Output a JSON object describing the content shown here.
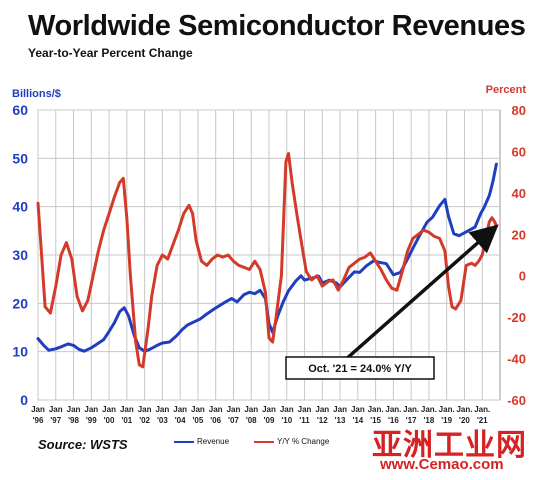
{
  "header": {
    "title": "Worldwide Semiconductor Revenues",
    "subtitle": "Year-to-Year Percent Change"
  },
  "footer": {
    "source": "Source: WSTS"
  },
  "legend": {
    "revenue": "Revenue",
    "yoy": "Y/Y % Change"
  },
  "watermark": {
    "site_name": "亚洲工业网",
    "url": "www.Cemao.com"
  },
  "colors": {
    "revenue": "#1f3fbf",
    "yoy": "#d43a2a",
    "grid": "#c8c8c8",
    "left_axis": "#1f3fbf",
    "right_axis": "#d43a2a"
  },
  "chart_data": {
    "type": "line",
    "title": "Worldwide Semiconductor Revenues",
    "subtitle": "Year-to-Year Percent Change",
    "y_left_label": "Billions/$",
    "y_right_label": "Percent",
    "y_left_range": [
      0,
      60
    ],
    "y_left_ticks": [
      "0",
      "10",
      "20",
      "30",
      "40",
      "50",
      "60"
    ],
    "y_right_range": [
      -60,
      80
    ],
    "y_right_ticks": [
      "-60",
      "-40",
      "-20",
      "0",
      "20",
      "40",
      "60",
      "80"
    ],
    "x_range": [
      1996.0,
      2022.0
    ],
    "grid": true,
    "x_ticks": [
      {
        "l1": "Jan",
        "l2": "'96"
      },
      {
        "l1": "Jan",
        "l2": "'97"
      },
      {
        "l1": "Jan",
        "l2": "'98"
      },
      {
        "l1": "Jan",
        "l2": "'99"
      },
      {
        "l1": "Jan",
        "l2": "'00"
      },
      {
        "l1": "Jan",
        "l2": "'01"
      },
      {
        "l1": "Jan",
        "l2": "'02"
      },
      {
        "l1": "Jan",
        "l2": "'03"
      },
      {
        "l1": "Jan",
        "l2": "'04"
      },
      {
        "l1": "Jan",
        "l2": "'05"
      },
      {
        "l1": "Jan",
        "l2": "'06"
      },
      {
        "l1": "Jan",
        "l2": "'07"
      },
      {
        "l1": "Jan",
        "l2": "'08"
      },
      {
        "l1": "Jan",
        "l2": "'09"
      },
      {
        "l1": "Jan",
        "l2": "'10"
      },
      {
        "l1": "Jan",
        "l2": "'11"
      },
      {
        "l1": "Jan",
        "l2": "'12"
      },
      {
        "l1": "Jan",
        "l2": "'13"
      },
      {
        "l1": "Jan",
        "l2": "'14"
      },
      {
        "l1": "Jan.",
        "l2": "'15"
      },
      {
        "l1": "Jan.",
        "l2": "'16"
      },
      {
        "l1": "Jan.",
        "l2": "'17"
      },
      {
        "l1": "Jan.",
        "l2": "'18"
      },
      {
        "l1": "Jan.",
        "l2": "'19"
      },
      {
        "l1": "Jan.",
        "l2": "'20"
      },
      {
        "l1": "Jan.",
        "l2": "'21"
      }
    ],
    "series": [
      {
        "name": "Revenue",
        "axis": "left",
        "points": [
          [
            1996.0,
            12.7
          ],
          [
            1996.3,
            11.4
          ],
          [
            1996.6,
            10.3
          ],
          [
            1997.0,
            10.6
          ],
          [
            1997.3,
            11.0
          ],
          [
            1997.7,
            11.6
          ],
          [
            1998.0,
            11.3
          ],
          [
            1998.3,
            10.5
          ],
          [
            1998.6,
            10.1
          ],
          [
            1999.0,
            10.8
          ],
          [
            1999.3,
            11.5
          ],
          [
            1999.7,
            12.5
          ],
          [
            2000.0,
            14.2
          ],
          [
            2000.3,
            16.0
          ],
          [
            2000.6,
            18.3
          ],
          [
            2000.85,
            19.1
          ],
          [
            2001.1,
            17.4
          ],
          [
            2001.4,
            13.5
          ],
          [
            2001.7,
            10.8
          ],
          [
            2002.0,
            10.1
          ],
          [
            2002.3,
            10.5
          ],
          [
            2002.7,
            11.3
          ],
          [
            2003.0,
            11.8
          ],
          [
            2003.4,
            12.0
          ],
          [
            2003.8,
            13.3
          ],
          [
            2004.1,
            14.5
          ],
          [
            2004.4,
            15.5
          ],
          [
            2004.8,
            16.2
          ],
          [
            2005.1,
            16.7
          ],
          [
            2005.5,
            17.8
          ],
          [
            2005.9,
            18.8
          ],
          [
            2006.2,
            19.5
          ],
          [
            2006.6,
            20.4
          ],
          [
            2006.9,
            21.0
          ],
          [
            2007.2,
            20.3
          ],
          [
            2007.6,
            21.8
          ],
          [
            2007.9,
            22.3
          ],
          [
            2008.2,
            22.0
          ],
          [
            2008.5,
            22.7
          ],
          [
            2008.8,
            21.0
          ],
          [
            2009.0,
            15.8
          ],
          [
            2009.2,
            14.0
          ],
          [
            2009.5,
            17.5
          ],
          [
            2009.8,
            20.3
          ],
          [
            2010.1,
            22.6
          ],
          [
            2010.5,
            24.6
          ],
          [
            2010.8,
            25.7
          ],
          [
            2011.0,
            24.8
          ],
          [
            2011.4,
            25.2
          ],
          [
            2011.8,
            25.6
          ],
          [
            2012.0,
            24.2
          ],
          [
            2012.4,
            24.8
          ],
          [
            2012.8,
            24.2
          ],
          [
            2013.0,
            23.4
          ],
          [
            2013.4,
            25.0
          ],
          [
            2013.8,
            26.5
          ],
          [
            2014.1,
            26.4
          ],
          [
            2014.5,
            27.8
          ],
          [
            2014.9,
            28.8
          ],
          [
            2015.2,
            28.5
          ],
          [
            2015.6,
            28.2
          ],
          [
            2016.0,
            25.9
          ],
          [
            2016.4,
            26.4
          ],
          [
            2016.8,
            29.2
          ],
          [
            2017.1,
            31.4
          ],
          [
            2017.5,
            34.2
          ],
          [
            2017.9,
            36.8
          ],
          [
            2018.2,
            37.8
          ],
          [
            2018.6,
            40.2
          ],
          [
            2018.9,
            41.5
          ],
          [
            2019.1,
            38.0
          ],
          [
            2019.4,
            34.4
          ],
          [
            2019.7,
            34.0
          ],
          [
            2020.0,
            34.6
          ],
          [
            2020.3,
            35.2
          ],
          [
            2020.6,
            35.8
          ],
          [
            2020.9,
            38.5
          ],
          [
            2021.1,
            39.8
          ],
          [
            2021.4,
            42.3
          ],
          [
            2021.6,
            45.2
          ],
          [
            2021.8,
            48.8
          ]
        ]
      },
      {
        "name": "Y/Y % Change",
        "axis": "right",
        "points": [
          [
            1996.0,
            35.0
          ],
          [
            1996.2,
            10.0
          ],
          [
            1996.4,
            -15.0
          ],
          [
            1996.7,
            -18.0
          ],
          [
            1997.0,
            -5.0
          ],
          [
            1997.3,
            10.0
          ],
          [
            1997.6,
            16.0
          ],
          [
            1997.9,
            8.0
          ],
          [
            1998.2,
            -10.0
          ],
          [
            1998.5,
            -17.0
          ],
          [
            1998.8,
            -12.0
          ],
          [
            1999.1,
            0.0
          ],
          [
            1999.4,
            12.0
          ],
          [
            1999.7,
            22.0
          ],
          [
            2000.0,
            30.0
          ],
          [
            2000.3,
            38.0
          ],
          [
            2000.6,
            45.0
          ],
          [
            2000.8,
            47.0
          ],
          [
            2001.0,
            28.0
          ],
          [
            2001.2,
            0.0
          ],
          [
            2001.5,
            -32.0
          ],
          [
            2001.7,
            -43.0
          ],
          [
            2001.9,
            -44.0
          ],
          [
            2002.2,
            -25.0
          ],
          [
            2002.4,
            -10.0
          ],
          [
            2002.7,
            5.0
          ],
          [
            2003.0,
            10.0
          ],
          [
            2003.3,
            8.0
          ],
          [
            2003.6,
            15.0
          ],
          [
            2003.9,
            22.0
          ],
          [
            2004.2,
            30.0
          ],
          [
            2004.5,
            34.0
          ],
          [
            2004.7,
            30.0
          ],
          [
            2004.9,
            17.0
          ],
          [
            2005.2,
            7.0
          ],
          [
            2005.5,
            5.0
          ],
          [
            2005.8,
            8.0
          ],
          [
            2006.1,
            10.0
          ],
          [
            2006.4,
            9.0
          ],
          [
            2006.7,
            10.0
          ],
          [
            2007.0,
            7.0
          ],
          [
            2007.3,
            5.0
          ],
          [
            2007.6,
            4.0
          ],
          [
            2007.9,
            3.0
          ],
          [
            2008.2,
            7.0
          ],
          [
            2008.5,
            3.0
          ],
          [
            2008.8,
            -8.0
          ],
          [
            2009.0,
            -30.0
          ],
          [
            2009.2,
            -32.0
          ],
          [
            2009.4,
            -20.0
          ],
          [
            2009.7,
            0.0
          ],
          [
            2009.95,
            55.0
          ],
          [
            2010.1,
            59.0
          ],
          [
            2010.3,
            45.0
          ],
          [
            2010.6,
            28.0
          ],
          [
            2010.9,
            12.0
          ],
          [
            2011.1,
            2.0
          ],
          [
            2011.4,
            -2.0
          ],
          [
            2011.7,
            0.0
          ],
          [
            2012.0,
            -5.0
          ],
          [
            2012.3,
            -3.0
          ],
          [
            2012.6,
            -2.0
          ],
          [
            2012.9,
            -7.0
          ],
          [
            2013.2,
            -2.0
          ],
          [
            2013.5,
            4.0
          ],
          [
            2013.8,
            6.0
          ],
          [
            2014.1,
            8.0
          ],
          [
            2014.4,
            9.0
          ],
          [
            2014.7,
            11.0
          ],
          [
            2015.0,
            7.0
          ],
          [
            2015.3,
            3.0
          ],
          [
            2015.6,
            -2.0
          ],
          [
            2015.9,
            -6.0
          ],
          [
            2016.2,
            -7.0
          ],
          [
            2016.5,
            2.0
          ],
          [
            2016.8,
            12.0
          ],
          [
            2017.1,
            18.0
          ],
          [
            2017.4,
            20.0
          ],
          [
            2017.7,
            22.0
          ],
          [
            2018.0,
            21.0
          ],
          [
            2018.3,
            19.0
          ],
          [
            2018.6,
            18.0
          ],
          [
            2018.9,
            12.0
          ],
          [
            2019.1,
            -5.0
          ],
          [
            2019.3,
            -15.0
          ],
          [
            2019.5,
            -16.0
          ],
          [
            2019.8,
            -12.0
          ],
          [
            2020.1,
            5.0
          ],
          [
            2020.4,
            6.0
          ],
          [
            2020.6,
            5.0
          ],
          [
            2020.8,
            7.0
          ],
          [
            2021.0,
            10.0
          ],
          [
            2021.2,
            18.0
          ],
          [
            2021.4,
            26.0
          ],
          [
            2021.55,
            28.0
          ],
          [
            2021.7,
            26.0
          ],
          [
            2021.8,
            24.0
          ]
        ]
      }
    ],
    "annotation": {
      "text": "Oct. '21 = 24.0% Y/Y",
      "target": [
        2021.8,
        24.0
      ],
      "axis": "right"
    }
  }
}
